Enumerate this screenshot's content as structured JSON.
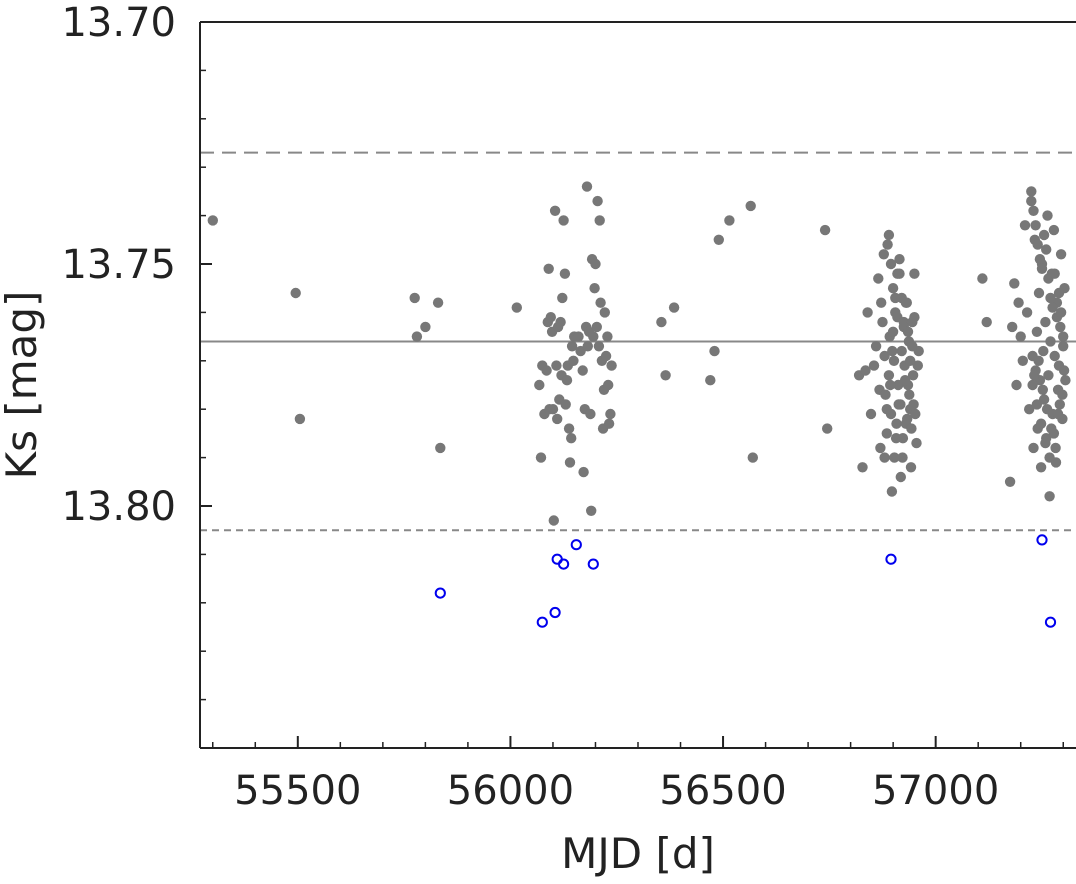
{
  "chart_data": {
    "type": "scatter",
    "xlabel": "MJD [d]",
    "ylabel": "Ks [mag]",
    "xlim": [
      55270,
      57330
    ],
    "ylim": [
      13.7,
      13.85
    ],
    "y_inverted": true,
    "x_ticks": [
      55500,
      56000,
      56500,
      57000
    ],
    "x_tick_labels": [
      "55500",
      "56000",
      "56500",
      "57000"
    ],
    "y_ticks": [
      13.7,
      13.75,
      13.8
    ],
    "y_tick_labels": [
      "13.70",
      "13.75",
      "13.80"
    ],
    "grid": false,
    "reference_lines": [
      {
        "style": "solid",
        "y": 13.766
      },
      {
        "style": "dashed",
        "y": 13.727
      },
      {
        "style": "dashed",
        "y": 13.805
      }
    ],
    "colors": {
      "inliers": "#777777",
      "outliers": "#0000ee",
      "lines": "#888888",
      "axis": "#222222"
    },
    "series": [
      {
        "marker": "filled-circle",
        "x": [
          55300,
          55495,
          55505,
          55775,
          55780,
          55800,
          55830,
          55835,
          56015,
          56068,
          56072,
          56075,
          56080,
          56085,
          56088,
          56090,
          56092,
          56095,
          56098,
          56100,
          56102,
          56105,
          56108,
          56110,
          56112,
          56115,
          56118,
          56120,
          56122,
          56125,
          56128,
          56130,
          56133,
          56135,
          56138,
          56140,
          56143,
          56145,
          56148,
          56150,
          56160,
          56165,
          56170,
          56172,
          56175,
          56178,
          56180,
          56182,
          56185,
          56188,
          56190,
          56192,
          56195,
          56198,
          56200,
          56203,
          56205,
          56208,
          56210,
          56212,
          56215,
          56218,
          56220,
          56222,
          56225,
          56228,
          56230,
          56232,
          56235,
          56238,
          56355,
          56365,
          56385,
          56470,
          56480,
          56490,
          56515,
          56565,
          56570,
          56740,
          56745,
          56820,
          56828,
          56835,
          56840,
          56848,
          56855,
          56860,
          56865,
          56868,
          56870,
          56872,
          56875,
          56878,
          56880,
          56882,
          56885,
          56887,
          56890,
          56892,
          56895,
          56897,
          56900,
          56902,
          56905,
          56907,
          56910,
          56912,
          56915,
          56917,
          56920,
          56922,
          56925,
          56927,
          56930,
          56932,
          56935,
          56937,
          56940,
          56942,
          56945,
          56947,
          56950,
          56952,
          56955,
          56958,
          56960,
          56890,
          56895,
          56900,
          56905,
          56910,
          56915,
          56920,
          56925,
          56930,
          56935,
          56940,
          56945,
          56950,
          56880,
          56885,
          56893,
          56898,
          56903,
          56908,
          56913,
          56918,
          56923,
          56928,
          56933,
          56938,
          56943,
          56948,
          57110,
          57120,
          57175,
          57180,
          57185,
          57190,
          57195,
          57200,
          57205,
          57210,
          57215,
          57220,
          57225,
          57228,
          57230,
          57233,
          57235,
          57238,
          57240,
          57243,
          57245,
          57248,
          57250,
          57253,
          57255,
          57258,
          57260,
          57263,
          57265,
          57268,
          57270,
          57273,
          57275,
          57278,
          57280,
          57283,
          57285,
          57288,
          57290,
          57293,
          57295,
          57298,
          57300,
          57303,
          57305,
          57225,
          57230,
          57235,
          57240,
          57245,
          57250,
          57255,
          57260,
          57265,
          57270,
          57275,
          57280,
          57285,
          57290,
          57295,
          57300,
          57228,
          57238,
          57248,
          57258,
          57268,
          57278,
          57288,
          57298,
          57232,
          57242,
          57252,
          57262,
          57272,
          57282,
          57292,
          57302
        ],
        "y": [
          13.741,
          13.756,
          13.782,
          13.757,
          13.765,
          13.763,
          13.758,
          13.788,
          13.759,
          13.775,
          13.79,
          13.771,
          13.781,
          13.772,
          13.762,
          13.751,
          13.78,
          13.761,
          13.764,
          13.78,
          13.803,
          13.739,
          13.771,
          13.782,
          13.763,
          13.778,
          13.762,
          13.773,
          13.757,
          13.741,
          13.752,
          13.779,
          13.774,
          13.771,
          13.784,
          13.791,
          13.786,
          13.767,
          13.77,
          13.765,
          13.765,
          13.768,
          13.772,
          13.793,
          13.78,
          13.763,
          13.734,
          13.767,
          13.764,
          13.781,
          13.801,
          13.749,
          13.765,
          13.755,
          13.75,
          13.763,
          13.737,
          13.767,
          13.741,
          13.758,
          13.77,
          13.784,
          13.776,
          13.76,
          13.769,
          13.765,
          13.775,
          13.783,
          13.781,
          13.771,
          13.762,
          13.773,
          13.759,
          13.774,
          13.768,
          13.745,
          13.741,
          13.738,
          13.79,
          13.743,
          13.784,
          13.773,
          13.792,
          13.772,
          13.76,
          13.781,
          13.771,
          13.767,
          13.753,
          13.776,
          13.788,
          13.758,
          13.762,
          13.748,
          13.769,
          13.777,
          13.785,
          13.746,
          13.773,
          13.765,
          13.781,
          13.797,
          13.764,
          13.77,
          13.757,
          13.786,
          13.761,
          13.775,
          13.752,
          13.779,
          13.768,
          13.79,
          13.762,
          13.771,
          13.783,
          13.758,
          13.775,
          13.766,
          13.78,
          13.792,
          13.762,
          13.773,
          13.752,
          13.781,
          13.787,
          13.771,
          13.768,
          13.744,
          13.75,
          13.755,
          13.76,
          13.752,
          13.749,
          13.757,
          13.763,
          13.758,
          13.764,
          13.77,
          13.767,
          13.761,
          13.79,
          13.78,
          13.775,
          13.768,
          13.79,
          13.783,
          13.779,
          13.794,
          13.786,
          13.774,
          13.782,
          13.777,
          13.784,
          13.779,
          13.753,
          13.762,
          13.795,
          13.763,
          13.754,
          13.775,
          13.758,
          13.765,
          13.77,
          13.742,
          13.76,
          13.78,
          13.735,
          13.769,
          13.788,
          13.745,
          13.772,
          13.764,
          13.784,
          13.756,
          13.774,
          13.792,
          13.75,
          13.768,
          13.778,
          13.762,
          13.786,
          13.74,
          13.773,
          13.798,
          13.766,
          13.752,
          13.781,
          13.743,
          13.769,
          13.791,
          13.758,
          13.776,
          13.771,
          13.763,
          13.748,
          13.782,
          13.767,
          13.755,
          13.774,
          13.737,
          13.739,
          13.742,
          13.746,
          13.749,
          13.751,
          13.744,
          13.747,
          13.753,
          13.757,
          13.759,
          13.752,
          13.761,
          13.756,
          13.76,
          13.765,
          13.775,
          13.779,
          13.783,
          13.787,
          13.79,
          13.785,
          13.781,
          13.777,
          13.773,
          13.77,
          13.776,
          13.78,
          13.784,
          13.788,
          13.779,
          13.772
        ]
      },
      {
        "marker": "open-circle",
        "x": [
          55835,
          56075,
          56105,
          56110,
          56125,
          56155,
          56195,
          56895,
          57250,
          57270
        ],
        "y": [
          13.818,
          13.824,
          13.822,
          13.811,
          13.812,
          13.808,
          13.812,
          13.811,
          13.807,
          13.824
        ]
      }
    ]
  }
}
